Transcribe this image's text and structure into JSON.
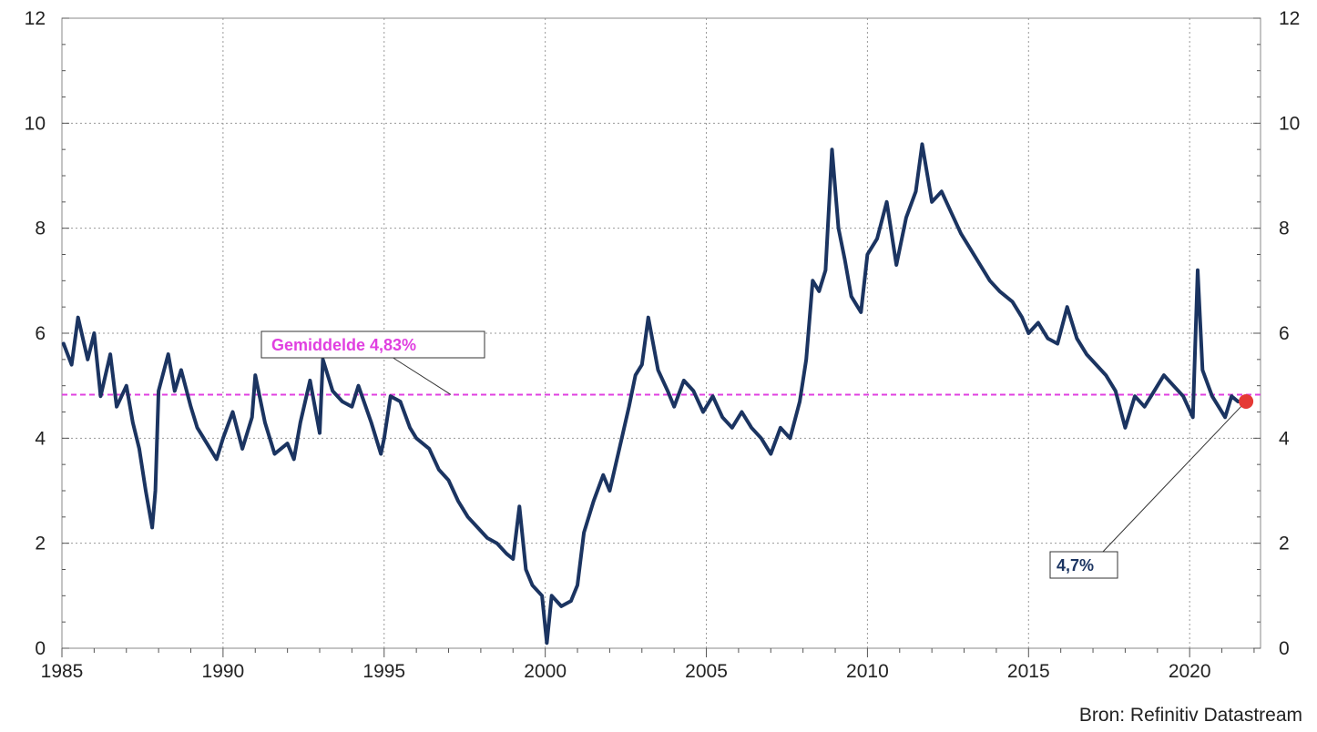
{
  "chart_data": {
    "type": "line",
    "x_range": [
      1985,
      2022.2
    ],
    "y_range": [
      0,
      12
    ],
    "x_ticks": [
      1985,
      1990,
      1995,
      2000,
      2005,
      2010,
      2015,
      2020
    ],
    "x_tick_labels": [
      "1985",
      "1990",
      "1995",
      "2000",
      "2005",
      "2010",
      "2015",
      "2020"
    ],
    "y_ticks": [
      0,
      2,
      4,
      6,
      8,
      10,
      12
    ],
    "y_tick_labels": [
      "0",
      "2",
      "4",
      "6",
      "8",
      "10",
      "12"
    ],
    "y_axis_both_sides": true,
    "grid": true,
    "series": [
      {
        "color": "#1b3461",
        "points": [
          [
            1985.05,
            5.8
          ],
          [
            1985.3,
            5.4
          ],
          [
            1985.5,
            6.3
          ],
          [
            1985.8,
            5.5
          ],
          [
            1986.0,
            6.0
          ],
          [
            1986.2,
            4.8
          ],
          [
            1986.5,
            5.6
          ],
          [
            1986.7,
            4.6
          ],
          [
            1987.0,
            5.0
          ],
          [
            1987.2,
            4.3
          ],
          [
            1987.4,
            3.8
          ],
          [
            1987.6,
            3.0
          ],
          [
            1987.8,
            2.3
          ],
          [
            1987.9,
            3.0
          ],
          [
            1988.0,
            4.9
          ],
          [
            1988.3,
            5.6
          ],
          [
            1988.5,
            4.9
          ],
          [
            1988.7,
            5.3
          ],
          [
            1989.0,
            4.6
          ],
          [
            1989.2,
            4.2
          ],
          [
            1989.5,
            3.9
          ],
          [
            1989.8,
            3.6
          ],
          [
            1990.0,
            4.0
          ],
          [
            1990.3,
            4.5
          ],
          [
            1990.6,
            3.8
          ],
          [
            1990.9,
            4.4
          ],
          [
            1991.0,
            5.2
          ],
          [
            1991.3,
            4.3
          ],
          [
            1991.6,
            3.7
          ],
          [
            1992.0,
            3.9
          ],
          [
            1992.2,
            3.6
          ],
          [
            1992.4,
            4.3
          ],
          [
            1992.7,
            5.1
          ],
          [
            1993.0,
            4.1
          ],
          [
            1993.1,
            5.5
          ],
          [
            1993.4,
            4.9
          ],
          [
            1993.7,
            4.7
          ],
          [
            1994.0,
            4.6
          ],
          [
            1994.2,
            5.0
          ],
          [
            1994.6,
            4.3
          ],
          [
            1994.9,
            3.7
          ],
          [
            1995.0,
            4.0
          ],
          [
            1995.2,
            4.8
          ],
          [
            1995.5,
            4.7
          ],
          [
            1995.8,
            4.2
          ],
          [
            1996.0,
            4.0
          ],
          [
            1996.4,
            3.8
          ],
          [
            1996.7,
            3.4
          ],
          [
            1997.0,
            3.2
          ],
          [
            1997.3,
            2.8
          ],
          [
            1997.6,
            2.5
          ],
          [
            1997.9,
            2.3
          ],
          [
            1998.2,
            2.1
          ],
          [
            1998.5,
            2.0
          ],
          [
            1998.8,
            1.8
          ],
          [
            1999.0,
            1.7
          ],
          [
            1999.2,
            2.7
          ],
          [
            1999.4,
            1.5
          ],
          [
            1999.6,
            1.2
          ],
          [
            1999.9,
            1.0
          ],
          [
            2000.05,
            0.1
          ],
          [
            2000.2,
            1.0
          ],
          [
            2000.5,
            0.8
          ],
          [
            2000.8,
            0.9
          ],
          [
            2001.0,
            1.2
          ],
          [
            2001.2,
            2.2
          ],
          [
            2001.5,
            2.8
          ],
          [
            2001.8,
            3.3
          ],
          [
            2002.0,
            3.0
          ],
          [
            2002.3,
            3.8
          ],
          [
            2002.6,
            4.6
          ],
          [
            2002.8,
            5.2
          ],
          [
            2003.0,
            5.4
          ],
          [
            2003.2,
            6.3
          ],
          [
            2003.5,
            5.3
          ],
          [
            2003.8,
            4.9
          ],
          [
            2004.0,
            4.6
          ],
          [
            2004.3,
            5.1
          ],
          [
            2004.6,
            4.9
          ],
          [
            2004.9,
            4.5
          ],
          [
            2005.2,
            4.8
          ],
          [
            2005.5,
            4.4
          ],
          [
            2005.8,
            4.2
          ],
          [
            2006.1,
            4.5
          ],
          [
            2006.4,
            4.2
          ],
          [
            2006.7,
            4.0
          ],
          [
            2007.0,
            3.7
          ],
          [
            2007.3,
            4.2
          ],
          [
            2007.6,
            4.0
          ],
          [
            2007.9,
            4.7
          ],
          [
            2008.1,
            5.5
          ],
          [
            2008.3,
            7.0
          ],
          [
            2008.5,
            6.8
          ],
          [
            2008.7,
            7.2
          ],
          [
            2008.9,
            9.5
          ],
          [
            2009.1,
            8.0
          ],
          [
            2009.3,
            7.4
          ],
          [
            2009.5,
            6.7
          ],
          [
            2009.8,
            6.4
          ],
          [
            2010.0,
            7.5
          ],
          [
            2010.3,
            7.8
          ],
          [
            2010.6,
            8.5
          ],
          [
            2010.9,
            7.3
          ],
          [
            2011.2,
            8.2
          ],
          [
            2011.5,
            8.7
          ],
          [
            2011.7,
            9.6
          ],
          [
            2012.0,
            8.5
          ],
          [
            2012.3,
            8.7
          ],
          [
            2012.6,
            8.3
          ],
          [
            2012.9,
            7.9
          ],
          [
            2013.2,
            7.6
          ],
          [
            2013.5,
            7.3
          ],
          [
            2013.8,
            7.0
          ],
          [
            2014.1,
            6.8
          ],
          [
            2014.5,
            6.6
          ],
          [
            2014.8,
            6.3
          ],
          [
            2015.0,
            6.0
          ],
          [
            2015.3,
            6.2
          ],
          [
            2015.6,
            5.9
          ],
          [
            2015.9,
            5.8
          ],
          [
            2016.2,
            6.5
          ],
          [
            2016.5,
            5.9
          ],
          [
            2016.8,
            5.6
          ],
          [
            2017.1,
            5.4
          ],
          [
            2017.4,
            5.2
          ],
          [
            2017.7,
            4.9
          ],
          [
            2018.0,
            4.2
          ],
          [
            2018.3,
            4.8
          ],
          [
            2018.6,
            4.6
          ],
          [
            2018.9,
            4.9
          ],
          [
            2019.2,
            5.2
          ],
          [
            2019.5,
            5.0
          ],
          [
            2019.8,
            4.8
          ],
          [
            2020.1,
            4.4
          ],
          [
            2020.25,
            7.2
          ],
          [
            2020.4,
            5.3
          ],
          [
            2020.7,
            4.8
          ],
          [
            2020.9,
            4.6
          ],
          [
            2021.1,
            4.4
          ],
          [
            2021.3,
            4.8
          ],
          [
            2021.5,
            4.7
          ],
          [
            2021.75,
            4.7
          ]
        ]
      }
    ],
    "average_line": {
      "value": 4.83,
      "color": "#e040e0",
      "label": "Gemiddelde 4,83%"
    },
    "last_point": {
      "x": 2021.75,
      "y": 4.7,
      "color": "#e53935",
      "label": "4,7%"
    },
    "source": "Bron: Refinitiv Datastream"
  }
}
